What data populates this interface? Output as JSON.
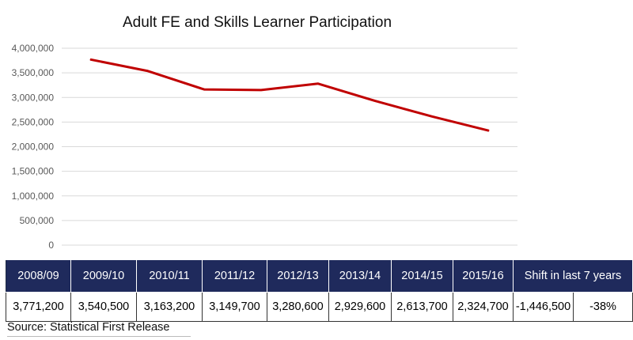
{
  "chart_data": {
    "type": "line",
    "title": "Adult FE and Skills Learner Participation",
    "categories": [
      "2008/09",
      "2009/10",
      "2010/11",
      "2011/12",
      "2012/13",
      "2013/14",
      "2014/15",
      "2015/16"
    ],
    "series": [
      {
        "values": [
          3771200,
          3540500,
          3163200,
          3149700,
          3280600,
          2929600,
          2613700,
          2324700
        ],
        "color": "#c00000"
      }
    ],
    "yticks": [
      "0",
      "500,000",
      "1,000,000",
      "1,500,000",
      "2,000,000",
      "2,500,000",
      "3,000,000",
      "3,500,000",
      "4,000,000"
    ],
    "ylim": [
      0,
      4000000
    ],
    "grid": true,
    "xlabel": "",
    "ylabel": ""
  },
  "table": {
    "headers": [
      "2008/09",
      "2009/10",
      "2010/11",
      "2011/12",
      "2012/13",
      "2013/14",
      "2014/15",
      "2015/16",
      "Shift in last 7 years"
    ],
    "values": [
      "3,771,200",
      "3,540,500",
      "3,163,200",
      "3,149,700",
      "3,280,600",
      "2,929,600",
      "2,613,700",
      "2,324,700",
      "-1,446,500",
      "-38%"
    ]
  },
  "source": "Source: Statistical First Release",
  "colors": {
    "header_bg": "#1f2a5c",
    "line": "#c00000",
    "grid": "#d9d9d9"
  }
}
